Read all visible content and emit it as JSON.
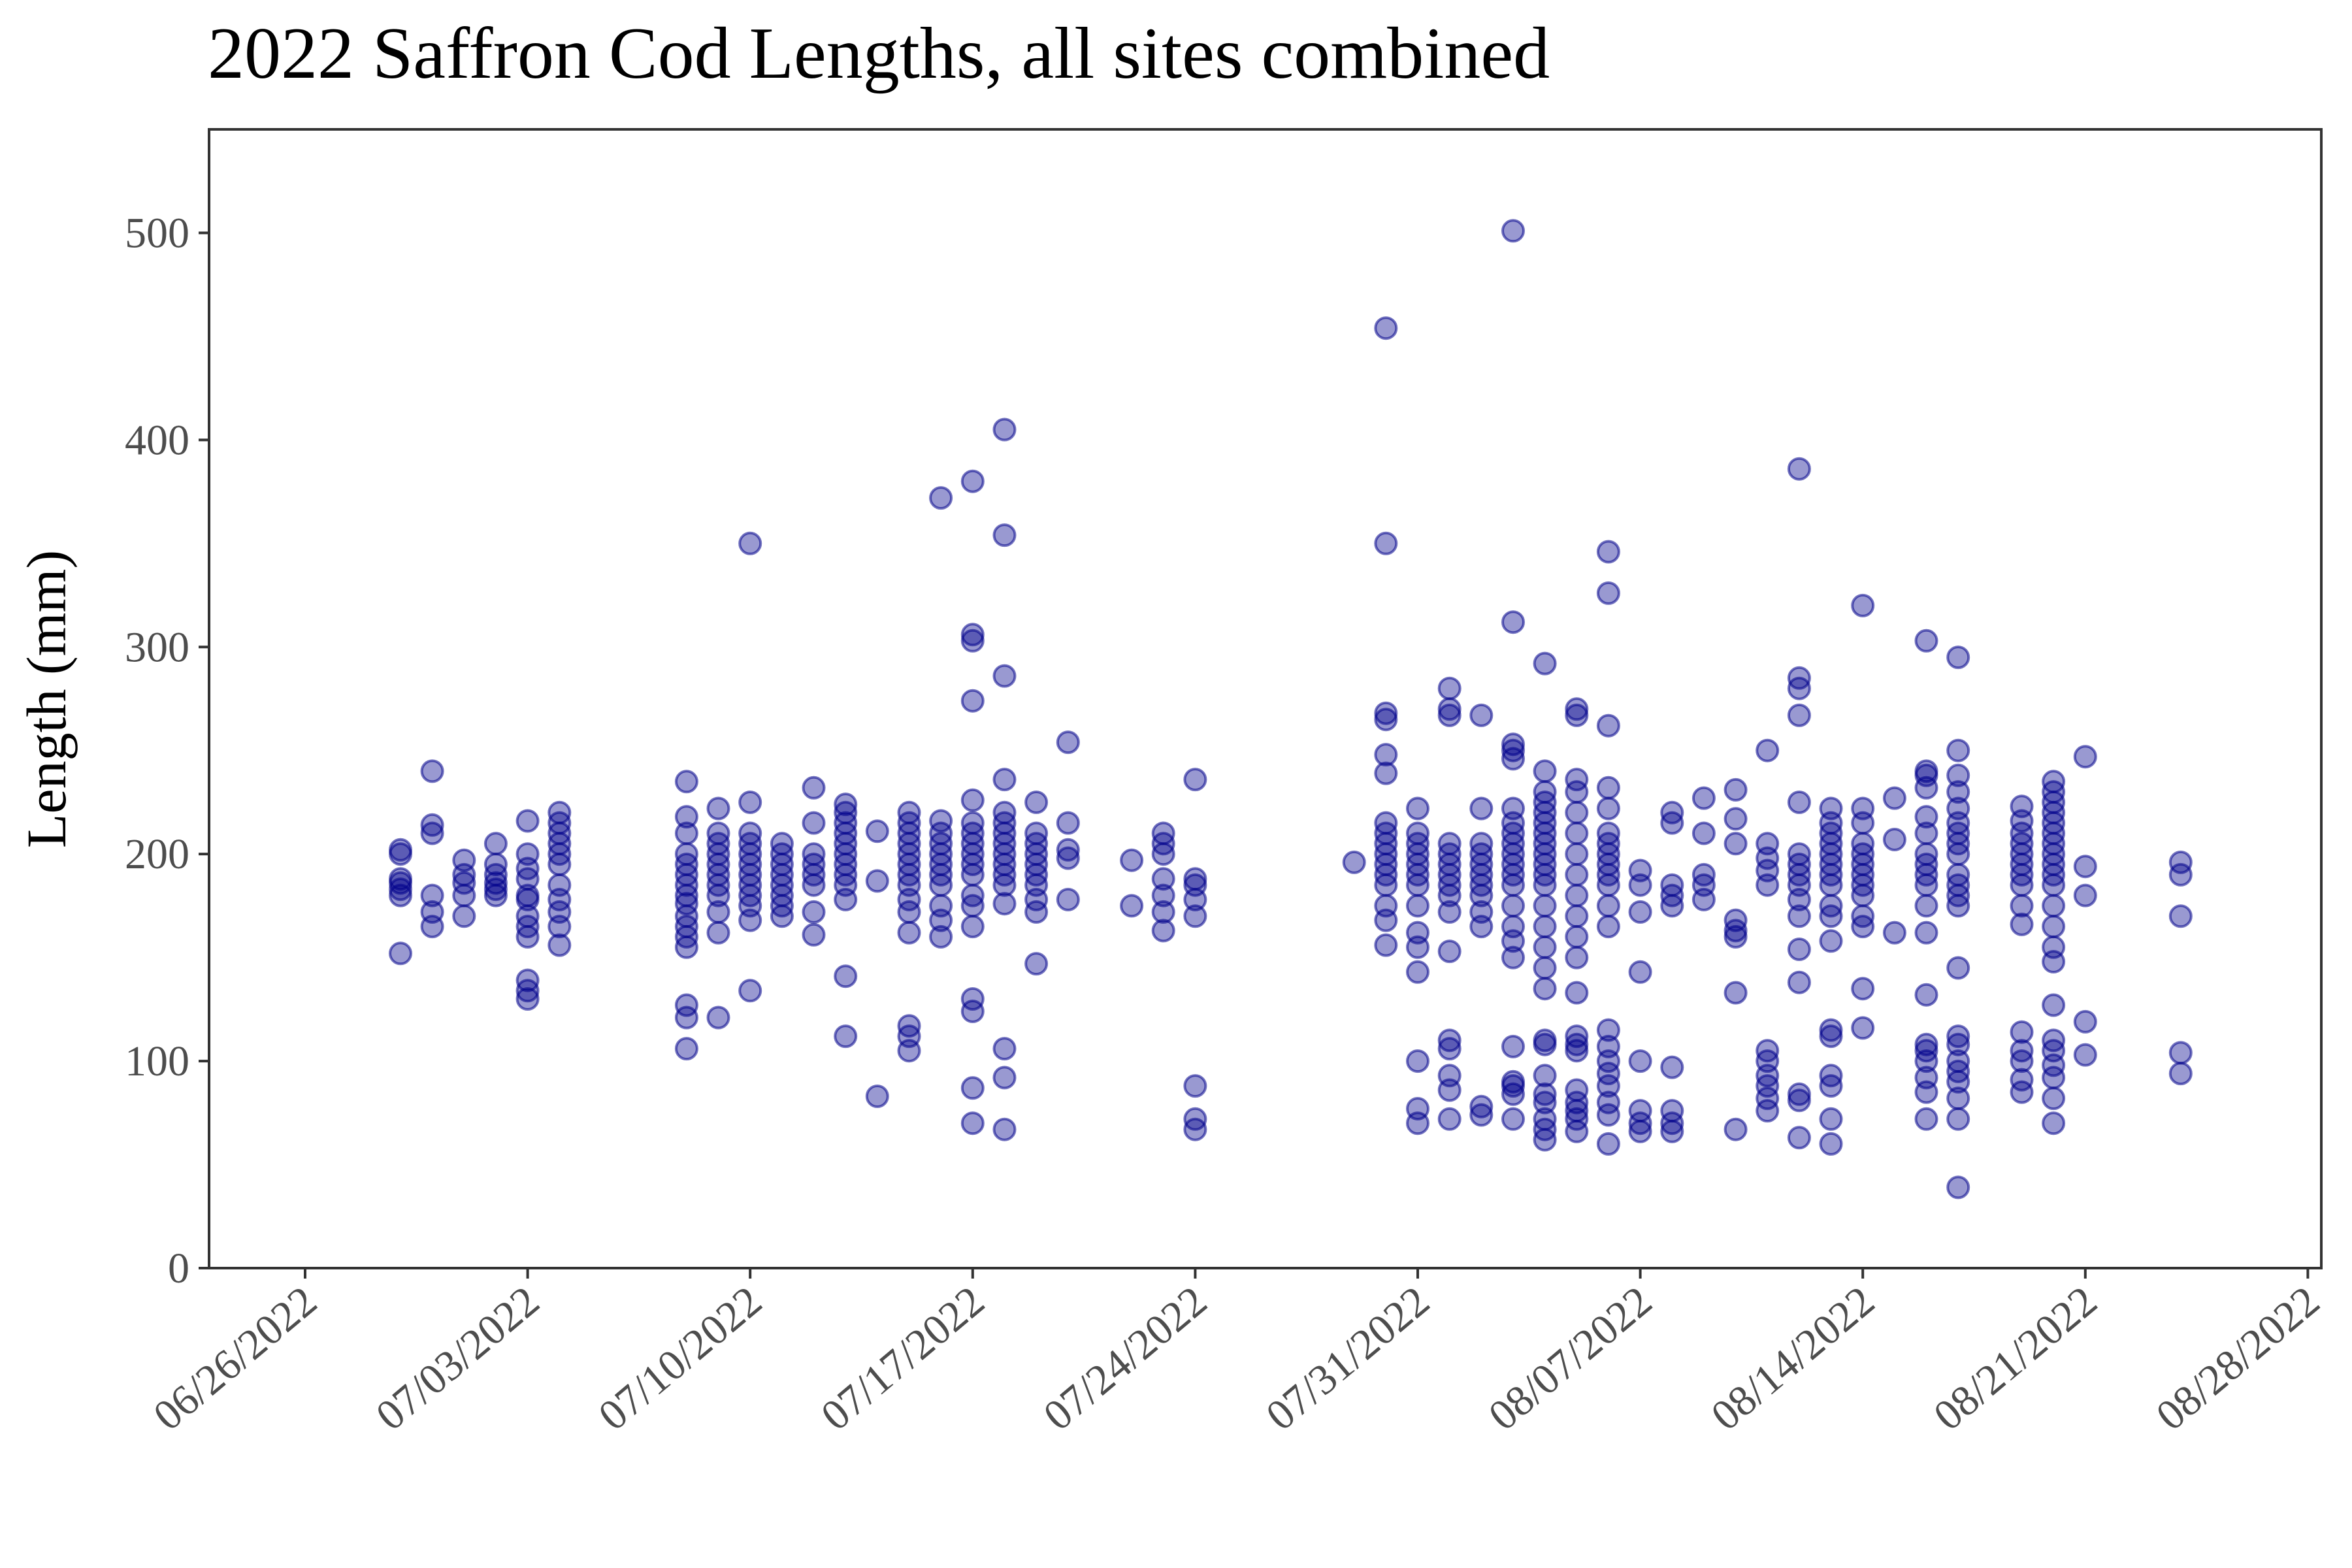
{
  "chart_data": {
    "type": "scatter",
    "title": "2022 Saffron Cod Lengths, all sites combined",
    "xlabel": "",
    "ylabel": "Length (mm)",
    "ylim": [
      0,
      550
    ],
    "xlim": [
      "06/23/2022",
      "08/29/2022"
    ],
    "x_ticks": [
      "06/26/2022",
      "07/03/2022",
      "07/10/2022",
      "07/17/2022",
      "07/24/2022",
      "07/31/2022",
      "08/07/2022",
      "08/14/2022",
      "08/21/2022",
      "08/28/2022"
    ],
    "y_ticks": [
      0,
      100,
      200,
      300,
      400,
      500
    ],
    "grid": false,
    "legend": "none",
    "point_color": "#00008B",
    "point_opacity": 0.4,
    "series": [
      {
        "points": [
          [
            "06/29/2022",
            [
              152,
              180,
              183,
              186,
              188,
              200,
              202
            ]
          ],
          [
            "06/30/2022",
            [
              165,
              172,
              180,
              210,
              214,
              240
            ]
          ],
          [
            "07/01/2022",
            [
              170,
              180,
              186,
              190,
              197
            ]
          ],
          [
            "07/02/2022",
            [
              180,
              183,
              186,
              190,
              195,
              205
            ]
          ],
          [
            "07/03/2022",
            [
              130,
              134,
              139,
              160,
              165,
              170,
              178,
              180,
              188,
              193,
              200,
              216
            ]
          ],
          [
            "07/04/2022",
            [
              156,
              165,
              172,
              178,
              185,
              195,
              200,
              205,
              210,
              215,
              220
            ]
          ],
          [
            "07/08/2022",
            [
              106,
              121,
              127,
              155,
              160,
              165,
              170,
              176,
              180,
              185,
              190,
              195,
              200,
              210,
              218,
              235
            ]
          ],
          [
            "07/09/2022",
            [
              121,
              162,
              172,
              180,
              185,
              190,
              195,
              200,
              205,
              210,
              222
            ]
          ],
          [
            "07/10/2022",
            [
              134,
              168,
              175,
              180,
              185,
              190,
              195,
              200,
              205,
              210,
              225,
              350
            ]
          ],
          [
            "07/11/2022",
            [
              170,
              175,
              180,
              185,
              190,
              195,
              200,
              205
            ]
          ],
          [
            "07/12/2022",
            [
              161,
              172,
              185,
              190,
              195,
              200,
              215,
              232
            ]
          ],
          [
            "07/13/2022",
            [
              112,
              141,
              178,
              185,
              190,
              195,
              200,
              205,
              210,
              215,
              220,
              224
            ]
          ],
          [
            "07/14/2022",
            [
              83,
              187,
              211
            ]
          ],
          [
            "07/15/2022",
            [
              105,
              112,
              117,
              162,
              172,
              178,
              185,
              190,
              195,
              200,
              205,
              210,
              215,
              220
            ]
          ],
          [
            "07/16/2022",
            [
              160,
              168,
              175,
              185,
              190,
              195,
              200,
              205,
              210,
              216,
              372
            ]
          ],
          [
            "07/17/2022",
            [
              70,
              87,
              124,
              130,
              165,
              175,
              180,
              190,
              195,
              200,
              205,
              210,
              215,
              226,
              274,
              303,
              306,
              380
            ]
          ],
          [
            "07/18/2022",
            [
              67,
              92,
              106,
              176,
              185,
              190,
              195,
              200,
              205,
              210,
              215,
              220,
              236,
              286,
              354,
              405
            ]
          ],
          [
            "07/19/2022",
            [
              147,
              172,
              178,
              185,
              190,
              195,
              200,
              205,
              210,
              225
            ]
          ],
          [
            "07/20/2022",
            [
              178,
              198,
              202,
              215,
              254
            ]
          ],
          [
            "07/22/2022",
            [
              175,
              197
            ]
          ],
          [
            "07/23/2022",
            [
              163,
              172,
              180,
              188,
              200,
              205,
              210
            ]
          ],
          [
            "07/24/2022",
            [
              67,
              72,
              88,
              170,
              178,
              185,
              188,
              236
            ]
          ],
          [
            "07/29/2022",
            [
              196
            ]
          ],
          [
            "07/30/2022",
            [
              156,
              168,
              175,
              185,
              190,
              195,
              200,
              205,
              210,
              215,
              239,
              248,
              265,
              268,
              350,
              454
            ]
          ],
          [
            "07/31/2022",
            [
              70,
              77,
              100,
              143,
              155,
              162,
              175,
              185,
              190,
              195,
              200,
              205,
              210,
              222
            ]
          ],
          [
            "08/01/2022",
            [
              72,
              86,
              93,
              106,
              110,
              153,
              172,
              180,
              185,
              190,
              195,
              200,
              205,
              267,
              270,
              280
            ]
          ],
          [
            "08/02/2022",
            [
              74,
              78,
              165,
              172,
              180,
              185,
              190,
              195,
              200,
              205,
              222,
              267
            ]
          ],
          [
            "08/03/2022",
            [
              72,
              84,
              88,
              90,
              107,
              150,
              158,
              165,
              175,
              185,
              190,
              195,
              200,
              205,
              210,
              215,
              222,
              246,
              250,
              253,
              312,
              501
            ]
          ],
          [
            "08/04/2022",
            [
              62,
              67,
              72,
              80,
              84,
              93,
              108,
              110,
              135,
              145,
              155,
              165,
              175,
              185,
              190,
              195,
              200,
              205,
              210,
              215,
              220,
              225,
              230,
              240,
              292
            ]
          ],
          [
            "08/05/2022",
            [
              66,
              72,
              76,
              80,
              86,
              105,
              108,
              112,
              133,
              150,
              160,
              170,
              180,
              190,
              200,
              210,
              220,
              230,
              236,
              267,
              270
            ]
          ],
          [
            "08/06/2022",
            [
              60,
              74,
              80,
              88,
              94,
              100,
              107,
              115,
              165,
              175,
              185,
              190,
              195,
              200,
              205,
              210,
              222,
              232,
              262,
              326,
              346
            ]
          ],
          [
            "08/07/2022",
            [
              66,
              70,
              76,
              100,
              143,
              172,
              185,
              192
            ]
          ],
          [
            "08/08/2022",
            [
              66,
              70,
              76,
              97,
              175,
              180,
              185,
              215,
              220
            ]
          ],
          [
            "08/09/2022",
            [
              178,
              185,
              190,
              210,
              227
            ]
          ],
          [
            "08/10/2022",
            [
              67,
              133,
              160,
              163,
              168,
              205,
              217,
              231
            ]
          ],
          [
            "08/11/2022",
            [
              76,
              82,
              88,
              93,
              100,
              105,
              185,
              192,
              198,
              205,
              250
            ]
          ],
          [
            "08/12/2022",
            [
              63,
              81,
              84,
              138,
              154,
              170,
              178,
              185,
              190,
              195,
              200,
              225,
              267,
              280,
              285,
              386
            ]
          ],
          [
            "08/13/2022",
            [
              60,
              72,
              88,
              93,
              112,
              115,
              158,
              170,
              175,
              185,
              190,
              195,
              200,
              205,
              210,
              215,
              222
            ]
          ],
          [
            "08/14/2022",
            [
              116,
              135,
              165,
              170,
              180,
              185,
              190,
              195,
              200,
              205,
              215,
              222,
              320
            ]
          ],
          [
            "08/15/2022",
            [
              162,
              207,
              227
            ]
          ],
          [
            "08/16/2022",
            [
              72,
              85,
              92,
              100,
              105,
              108,
              132,
              162,
              175,
              185,
              190,
              195,
              200,
              210,
              218,
              232,
              238,
              240,
              303
            ]
          ],
          [
            "08/17/2022",
            [
              39,
              72,
              82,
              90,
              95,
              100,
              108,
              112,
              145,
              175,
              180,
              185,
              190,
              200,
              205,
              210,
              215,
              222,
              230,
              238,
              250,
              295
            ]
          ],
          [
            "08/19/2022",
            [
              85,
              91,
              100,
              105,
              114,
              166,
              175,
              185,
              190,
              195,
              200,
              205,
              210,
              216,
              223
            ]
          ],
          [
            "08/20/2022",
            [
              70,
              82,
              92,
              98,
              105,
              110,
              127,
              148,
              155,
              165,
              175,
              185,
              190,
              195,
              200,
              205,
              210,
              215,
              220,
              225,
              230,
              235
            ]
          ],
          [
            "08/21/2022",
            [
              103,
              119,
              180,
              194,
              247
            ]
          ],
          [
            "08/24/2022",
            [
              94,
              104,
              170,
              190,
              196
            ]
          ]
        ]
      }
    ]
  }
}
